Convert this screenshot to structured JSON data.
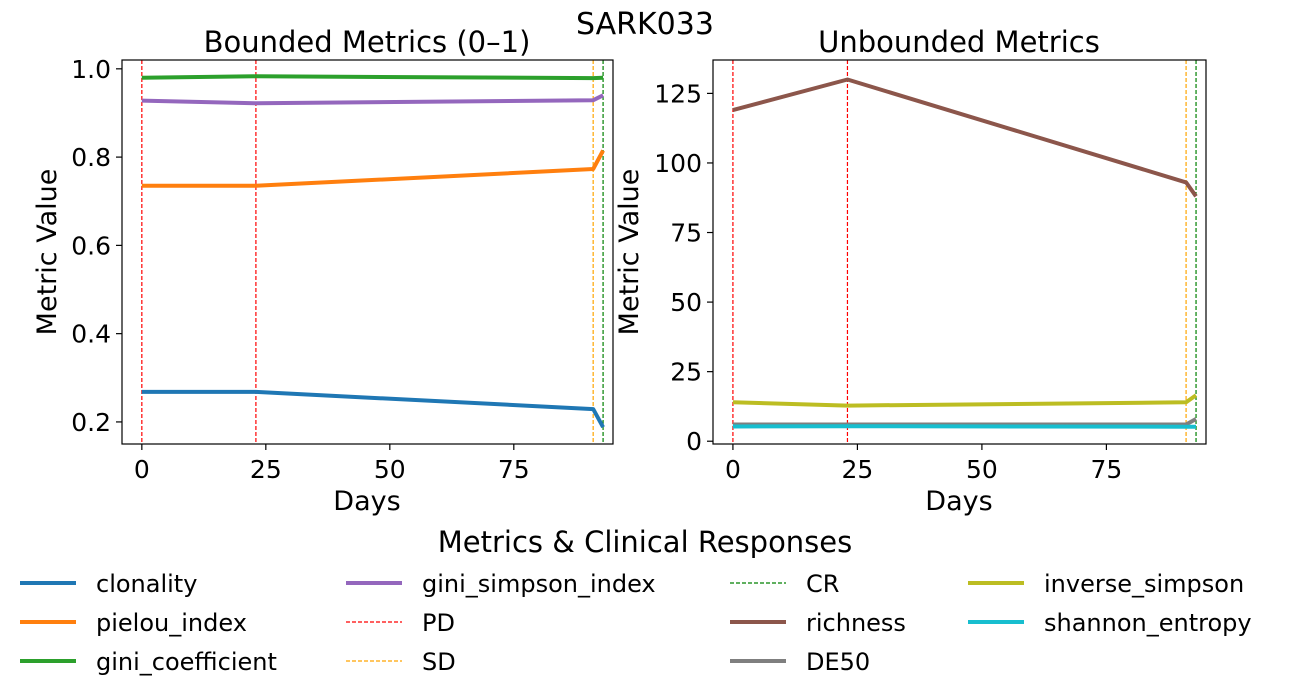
{
  "figure": {
    "title": "SARK033",
    "legend_title": "Metrics & Clinical Responses",
    "legend_items": [
      {
        "label": "clonality",
        "color": "#1f77b4",
        "style": "solid"
      },
      {
        "label": "pielou_index",
        "color": "#ff7f0e",
        "style": "solid"
      },
      {
        "label": "gini_coefficient",
        "color": "#2ca02c",
        "style": "solid"
      },
      {
        "label": "gini_simpson_index",
        "color": "#9467bd",
        "style": "solid"
      },
      {
        "label": "PD",
        "color": "#ff0000",
        "style": "dashed"
      },
      {
        "label": "SD",
        "color": "#ffa500",
        "style": "dashed"
      },
      {
        "label": "CR",
        "color": "#008000",
        "style": "dashed"
      },
      {
        "label": "richness",
        "color": "#8c564b",
        "style": "solid"
      },
      {
        "label": "DE50",
        "color": "#7f7f7f",
        "style": "solid"
      },
      {
        "label": "inverse_simpson",
        "color": "#bcbd22",
        "style": "solid"
      },
      {
        "label": "shannon_entropy",
        "color": "#17becf",
        "style": "solid"
      }
    ]
  },
  "chart_data": [
    {
      "type": "line",
      "title": "Bounded Metrics (0–1)",
      "xlabel": "Days",
      "ylabel": "Metric Value",
      "xlim": [
        -4,
        95
      ],
      "ylim": [
        0.15,
        1.02
      ],
      "xticks": [
        0,
        25,
        50,
        75
      ],
      "yticks": [
        0.2,
        0.4,
        0.6,
        0.8,
        1.0
      ],
      "ytick_labels": [
        "0.2",
        "0.4",
        "0.6",
        "0.8",
        "1.0"
      ],
      "grid": false,
      "x": [
        0,
        23,
        91,
        93
      ],
      "series": [
        {
          "name": "clonality",
          "color": "#1f77b4",
          "values": [
            0.268,
            0.268,
            0.229,
            0.188
          ]
        },
        {
          "name": "pielou_index",
          "color": "#ff7f0e",
          "values": [
            0.735,
            0.735,
            0.773,
            0.815
          ]
        },
        {
          "name": "gini_coefficient",
          "color": "#2ca02c",
          "values": [
            0.98,
            0.983,
            0.979,
            0.98
          ]
        },
        {
          "name": "gini_simpson_index",
          "color": "#9467bd",
          "values": [
            0.928,
            0.922,
            0.929,
            0.94
          ]
        }
      ],
      "vlines": [
        {
          "name": "PD",
          "x": 0,
          "color": "#ff0000"
        },
        {
          "name": "PD",
          "x": 23,
          "color": "#ff0000"
        },
        {
          "name": "SD",
          "x": 91,
          "color": "#ffa500"
        },
        {
          "name": "CR",
          "x": 93,
          "color": "#008000"
        }
      ]
    },
    {
      "type": "line",
      "title": "Unbounded Metrics",
      "xlabel": "Days",
      "ylabel": "Metric Value",
      "xlim": [
        -4,
        95
      ],
      "ylim": [
        -1,
        137
      ],
      "xticks": [
        0,
        25,
        50,
        75
      ],
      "yticks": [
        0,
        25,
        50,
        75,
        100,
        125
      ],
      "ytick_labels": [
        "0",
        "25",
        "50",
        "75",
        "100",
        "125"
      ],
      "grid": false,
      "x": [
        0,
        23,
        91,
        93
      ],
      "series": [
        {
          "name": "richness",
          "color": "#8c564b",
          "values": [
            119,
            130,
            93,
            88
          ]
        },
        {
          "name": "DE50",
          "color": "#7f7f7f",
          "values": [
            6,
            6,
            6,
            8
          ]
        },
        {
          "name": "inverse_simpson",
          "color": "#bcbd22",
          "values": [
            14,
            12.8,
            14,
            16.5
          ]
        },
        {
          "name": "shannon_entropy",
          "color": "#17becf",
          "values": [
            5.3,
            5.4,
            5.2,
            5.2
          ]
        }
      ],
      "vlines": [
        {
          "name": "PD",
          "x": 0,
          "color": "#ff0000"
        },
        {
          "name": "PD",
          "x": 23,
          "color": "#ff0000"
        },
        {
          "name": "SD",
          "x": 91,
          "color": "#ffa500"
        },
        {
          "name": "CR",
          "x": 93,
          "color": "#008000"
        }
      ]
    }
  ]
}
